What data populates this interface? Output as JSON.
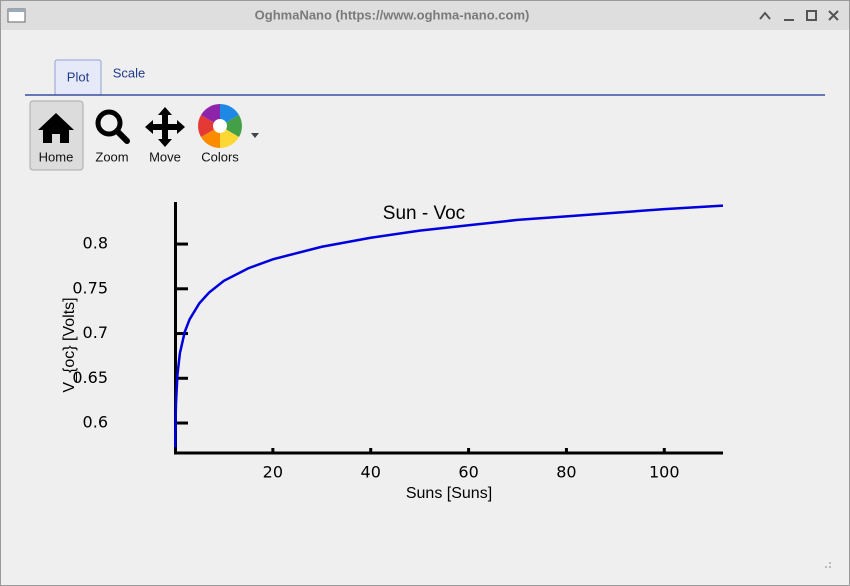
{
  "window": {
    "title": "OghmaNano (https://www.oghma-nano.com)"
  },
  "tabs": [
    "Plot",
    "Scale"
  ],
  "toolbar": [
    "Home",
    "Zoom",
    "Move",
    "Colors"
  ],
  "chart_data": {
    "type": "line",
    "title": "Sun - Voc",
    "x_label": "Suns [Suns]",
    "y_label": "V_{oc} [Volts]",
    "x": [
      0.05,
      0.1,
      0.2,
      0.5,
      1,
      2,
      3,
      5,
      7,
      10,
      15,
      20,
      30,
      40,
      50,
      60,
      70,
      80,
      90,
      100,
      112
    ],
    "series": [
      {
        "color": "#0000dd",
        "values": [
          0.573,
          0.597,
          0.622,
          0.654,
          0.678,
          0.702,
          0.716,
          0.734,
          0.746,
          0.759,
          0.773,
          0.783,
          0.797,
          0.807,
          0.815,
          0.821,
          0.827,
          0.831,
          0.835,
          0.839,
          0.843
        ]
      }
    ],
    "xlim": [
      0,
      112
    ],
    "ylim": [
      0.5665,
      0.847
    ],
    "xticks": [
      20,
      40,
      60,
      80,
      100
    ],
    "yticks": [
      0.6,
      0.65,
      0.7,
      0.75,
      0.8
    ]
  }
}
